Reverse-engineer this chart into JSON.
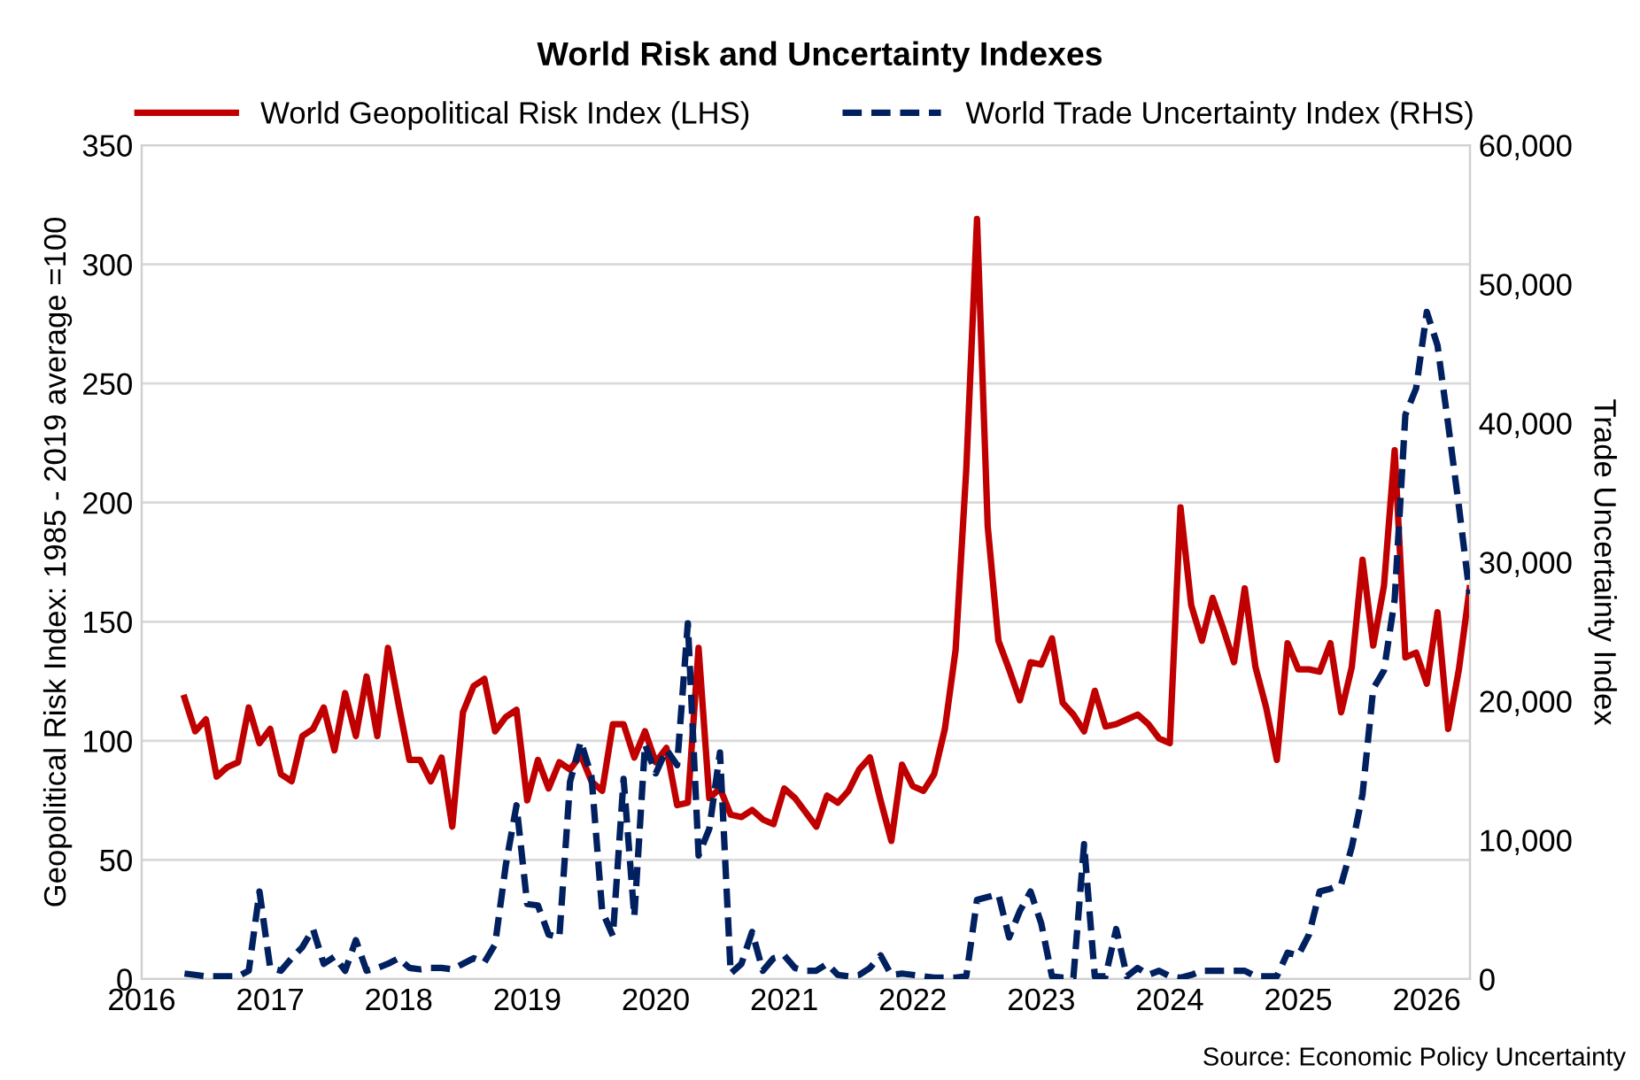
{
  "chart_data": {
    "type": "line",
    "title": "World Risk and Uncertainty Indexes",
    "ylabel": "Geopolitical Risk Index: 1985 - 2019 average =100",
    "y2label": "Trade Uncertainty Index",
    "annotations": [
      "Source: Economic Policy Uncertainty"
    ],
    "x": [
      "2016-05",
      "2016-06",
      "2016-07",
      "2016-08",
      "2016-09",
      "2016-10",
      "2016-11",
      "2016-12",
      "2017-01",
      "2017-02",
      "2017-03",
      "2017-04",
      "2017-05",
      "2017-06",
      "2017-07",
      "2017-08",
      "2017-09",
      "2017-10",
      "2017-11",
      "2017-12",
      "2018-01",
      "2018-02",
      "2018-03",
      "2018-04",
      "2018-05",
      "2018-06",
      "2018-07",
      "2018-08",
      "2018-09",
      "2018-10",
      "2018-11",
      "2018-12",
      "2019-01",
      "2019-02",
      "2019-03",
      "2019-04",
      "2019-05",
      "2019-06",
      "2019-07",
      "2019-08",
      "2019-09",
      "2019-10",
      "2019-11",
      "2019-12",
      "2020-01",
      "2020-02",
      "2020-03",
      "2020-04",
      "2020-05",
      "2020-06",
      "2020-07",
      "2020-08",
      "2020-09",
      "2020-10",
      "2020-11",
      "2020-12",
      "2021-01",
      "2021-02",
      "2021-03",
      "2021-04",
      "2021-05",
      "2021-06",
      "2021-07",
      "2021-08",
      "2021-09",
      "2021-10",
      "2021-11",
      "2021-12",
      "2022-01",
      "2022-02",
      "2022-03",
      "2022-04",
      "2022-05",
      "2022-06",
      "2022-07",
      "2022-08",
      "2022-09",
      "2022-10",
      "2022-11",
      "2022-12",
      "2023-01",
      "2023-02",
      "2023-03",
      "2023-04",
      "2023-05",
      "2023-06",
      "2023-07",
      "2023-08",
      "2023-09",
      "2023-10",
      "2023-11",
      "2023-12",
      "2024-01",
      "2024-02",
      "2024-03",
      "2024-04",
      "2024-05",
      "2024-06",
      "2024-07",
      "2024-08",
      "2024-09",
      "2024-10",
      "2024-11",
      "2024-12",
      "2025-01",
      "2025-02",
      "2025-03",
      "2025-04",
      "2025-05",
      "2025-06",
      "2025-07",
      "2025-08",
      "2025-09",
      "2025-10",
      "2025-11",
      "2025-12",
      "2026-01",
      "2026-02",
      "2026-03",
      "2026-04",
      "2026-05"
    ],
    "series": [
      {
        "name": "World Geopolitical Risk Index (LHS)",
        "color": "#c00000",
        "line_style": "solid",
        "values": [
          118,
          104,
          109,
          85,
          89,
          91,
          114,
          99,
          105,
          86,
          83,
          102,
          105,
          114,
          96,
          120,
          102,
          127,
          102,
          139,
          115,
          92,
          92,
          83,
          93,
          64,
          112,
          123,
          126,
          104,
          110,
          113,
          75,
          92,
          80,
          91,
          88,
          94,
          83,
          79,
          107,
          107,
          93,
          104,
          91,
          97,
          73,
          74,
          139,
          76,
          80,
          69,
          68,
          71,
          67,
          65,
          80,
          76,
          70,
          64,
          77,
          74,
          79,
          88,
          93,
          75,
          58,
          90,
          81,
          79,
          86,
          105,
          138,
          214,
          319,
          190,
          142,
          130,
          117,
          133,
          132,
          143,
          116,
          111,
          104,
          121,
          106,
          107,
          109,
          111,
          107,
          101,
          99,
          198,
          157,
          142,
          160,
          147,
          133,
          164,
          131,
          114,
          92,
          141,
          130,
          130,
          129,
          141,
          112,
          131,
          176,
          140,
          165,
          222,
          135,
          137,
          124,
          154,
          105,
          130,
          164
        ]
      },
      {
        "name": "World Trade Uncertainty Index (RHS)",
        "color": "#002060",
        "line_style": "dashed",
        "axis": "y2",
        "values": [
          400,
          300,
          200,
          200,
          200,
          200,
          600,
          6300,
          800,
          600,
          1500,
          2300,
          3600,
          1100,
          1600,
          600,
          2800,
          600,
          800,
          1100,
          1500,
          800,
          700,
          800,
          800,
          700,
          1100,
          1500,
          1200,
          2500,
          8200,
          12500,
          5400,
          5300,
          3200,
          3000,
          14200,
          17100,
          14600,
          4900,
          3100,
          14400,
          4500,
          16900,
          14800,
          16500,
          15400,
          25600,
          8900,
          10800,
          16300,
          400,
          1100,
          3400,
          600,
          1500,
          1700,
          800,
          600,
          600,
          1100,
          300,
          200,
          300,
          800,
          1700,
          300,
          400,
          300,
          200,
          100,
          100,
          100,
          200,
          5700,
          5900,
          6100,
          3000,
          4900,
          6300,
          4000,
          200,
          100,
          100,
          9700,
          200,
          200,
          3600,
          200,
          800,
          300,
          600,
          200,
          100,
          300,
          600,
          600,
          600,
          600,
          600,
          200,
          200,
          200,
          1900,
          1700,
          3200,
          6300,
          6500,
          6800,
          9500,
          13300,
          20900,
          22200,
          27300,
          40600,
          42500,
          48000,
          45600,
          39900,
          34000,
          27700
        ]
      }
    ],
    "xlim": [
      "2016",
      "2026-05-02"
    ],
    "xticks": [
      "2016",
      "2017",
      "2018",
      "2019",
      "2020",
      "2021",
      "2022",
      "2023",
      "2024",
      "2025",
      "2026"
    ],
    "ylim": [
      0,
      350
    ],
    "yticks": [
      0,
      50,
      100,
      150,
      200,
      250,
      300,
      350
    ],
    "y2lim": [
      0,
      60000
    ],
    "y2ticks": [
      {
        "value": 0,
        "label": "0"
      },
      {
        "value": 10000,
        "label": "10,000"
      },
      {
        "value": 20000,
        "label": "20,000"
      },
      {
        "value": 30000,
        "label": "30,000"
      },
      {
        "value": 40000,
        "label": "40,000"
      },
      {
        "value": 50000,
        "label": "50,000"
      },
      {
        "value": 60000,
        "label": "60,000"
      }
    ],
    "grid": "y",
    "legend": "top",
    "marker": "none"
  }
}
